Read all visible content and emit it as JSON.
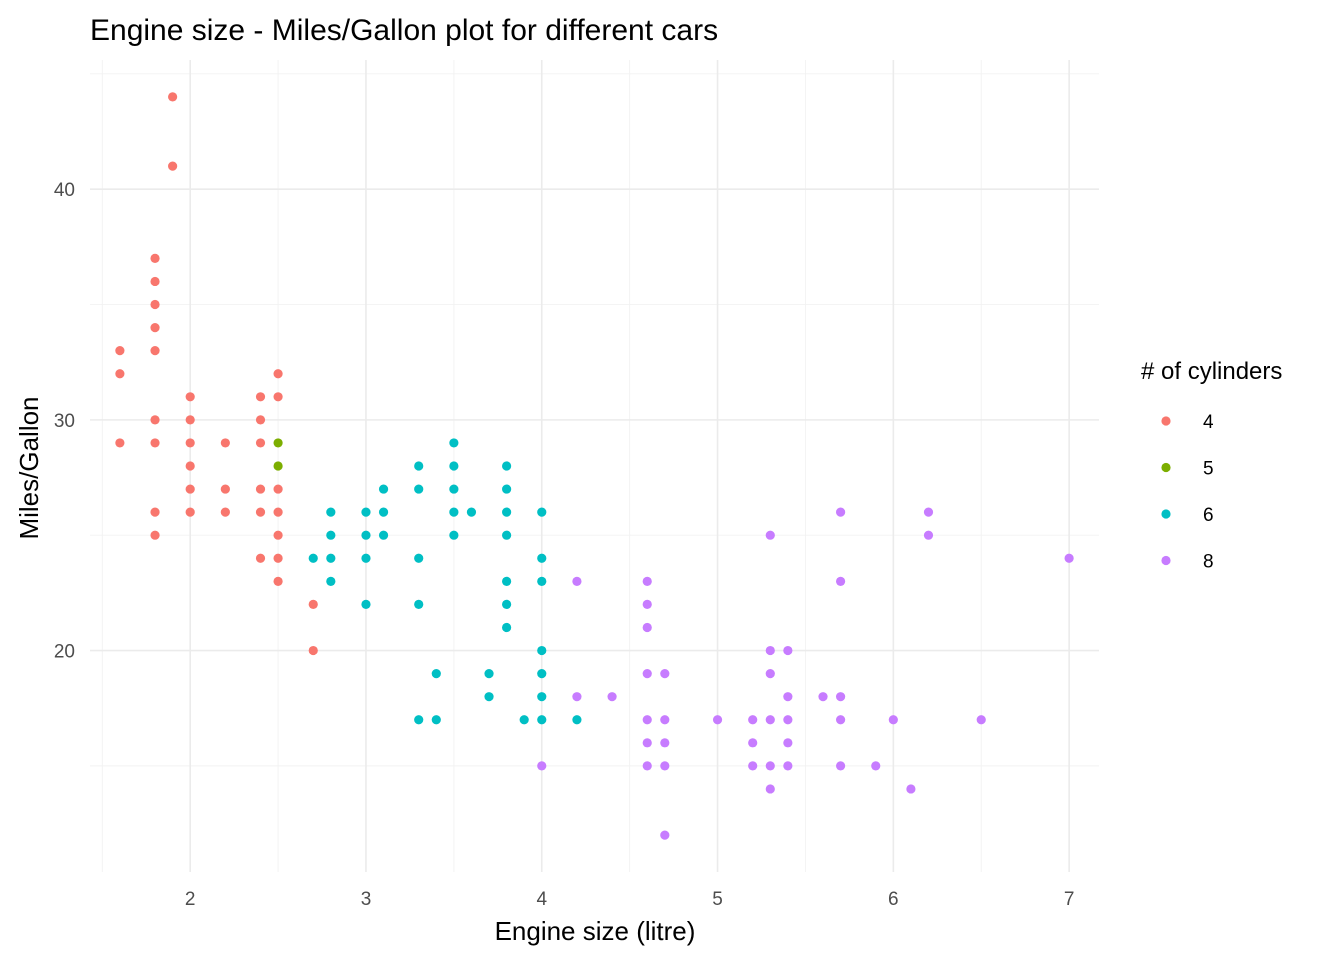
{
  "chart_data": {
    "type": "scatter",
    "title": "Engine size - Miles/Gallon plot for different cars",
    "xlabel": "Engine size (litre)",
    "ylabel": "Miles/Gallon",
    "xlim": [
      1.43,
      7.17
    ],
    "ylim": [
      10.4,
      45.6
    ],
    "x_ticks": [
      2,
      3,
      4,
      5,
      6,
      7
    ],
    "y_ticks": [
      20,
      30,
      40
    ],
    "grid": true,
    "legend": {
      "title": "# of cylinders",
      "position": "right"
    },
    "series": [
      {
        "name": "4",
        "color": "#F8766D",
        "points": [
          [
            1.6,
            33
          ],
          [
            1.6,
            32
          ],
          [
            1.6,
            29
          ],
          [
            1.8,
            37
          ],
          [
            1.8,
            36
          ],
          [
            1.8,
            35
          ],
          [
            1.8,
            34
          ],
          [
            1.8,
            33
          ],
          [
            1.8,
            30
          ],
          [
            1.8,
            29
          ],
          [
            1.8,
            26
          ],
          [
            1.8,
            25
          ],
          [
            1.9,
            44
          ],
          [
            1.9,
            41
          ],
          [
            2.0,
            31
          ],
          [
            2.0,
            30
          ],
          [
            2.0,
            29
          ],
          [
            2.0,
            28
          ],
          [
            2.0,
            27
          ],
          [
            2.0,
            26
          ],
          [
            2.2,
            29
          ],
          [
            2.2,
            27
          ],
          [
            2.2,
            26
          ],
          [
            2.4,
            31
          ],
          [
            2.4,
            30
          ],
          [
            2.4,
            29
          ],
          [
            2.4,
            27
          ],
          [
            2.4,
            26
          ],
          [
            2.4,
            24
          ],
          [
            2.5,
            32
          ],
          [
            2.5,
            31
          ],
          [
            2.5,
            27
          ],
          [
            2.5,
            26
          ],
          [
            2.5,
            25
          ],
          [
            2.5,
            24
          ],
          [
            2.5,
            23
          ],
          [
            2.7,
            22
          ],
          [
            2.7,
            20
          ]
        ]
      },
      {
        "name": "5",
        "color": "#7CAE00",
        "points": [
          [
            2.5,
            29
          ],
          [
            2.5,
            28
          ]
        ]
      },
      {
        "name": "6",
        "color": "#00BFC4",
        "points": [
          [
            2.7,
            24
          ],
          [
            2.8,
            26
          ],
          [
            2.8,
            25
          ],
          [
            2.8,
            24
          ],
          [
            2.8,
            23
          ],
          [
            3.0,
            26
          ],
          [
            3.0,
            25
          ],
          [
            3.0,
            24
          ],
          [
            3.0,
            22
          ],
          [
            3.1,
            27
          ],
          [
            3.1,
            26
          ],
          [
            3.1,
            25
          ],
          [
            3.3,
            28
          ],
          [
            3.3,
            27
          ],
          [
            3.3,
            24
          ],
          [
            3.3,
            22
          ],
          [
            3.3,
            17
          ],
          [
            3.4,
            19
          ],
          [
            3.4,
            17
          ],
          [
            3.5,
            29
          ],
          [
            3.5,
            28
          ],
          [
            3.5,
            27
          ],
          [
            3.5,
            26
          ],
          [
            3.5,
            25
          ],
          [
            3.6,
            26
          ],
          [
            3.7,
            19
          ],
          [
            3.7,
            18
          ],
          [
            3.8,
            28
          ],
          [
            3.8,
            27
          ],
          [
            3.8,
            26
          ],
          [
            3.8,
            25
          ],
          [
            3.8,
            23
          ],
          [
            3.8,
            22
          ],
          [
            3.8,
            21
          ],
          [
            3.9,
            17
          ],
          [
            4.0,
            26
          ],
          [
            4.0,
            24
          ],
          [
            4.0,
            23
          ],
          [
            4.0,
            20
          ],
          [
            4.0,
            19
          ],
          [
            4.0,
            18
          ],
          [
            4.0,
            17
          ],
          [
            4.2,
            17
          ]
        ]
      },
      {
        "name": "8",
        "color": "#C77CFF",
        "points": [
          [
            4.0,
            15
          ],
          [
            4.2,
            23
          ],
          [
            4.2,
            18
          ],
          [
            4.4,
            18
          ],
          [
            4.6,
            23
          ],
          [
            4.6,
            22
          ],
          [
            4.6,
            21
          ],
          [
            4.6,
            19
          ],
          [
            4.6,
            17
          ],
          [
            4.6,
            16
          ],
          [
            4.6,
            15
          ],
          [
            4.7,
            19
          ],
          [
            4.7,
            17
          ],
          [
            4.7,
            16
          ],
          [
            4.7,
            15
          ],
          [
            4.7,
            12
          ],
          [
            5.0,
            17
          ],
          [
            5.2,
            17
          ],
          [
            5.2,
            16
          ],
          [
            5.2,
            15
          ],
          [
            5.3,
            25
          ],
          [
            5.3,
            20
          ],
          [
            5.3,
            19
          ],
          [
            5.3,
            17
          ],
          [
            5.3,
            15
          ],
          [
            5.3,
            14
          ],
          [
            5.4,
            20
          ],
          [
            5.4,
            18
          ],
          [
            5.4,
            17
          ],
          [
            5.4,
            16
          ],
          [
            5.4,
            15
          ],
          [
            5.6,
            18
          ],
          [
            5.7,
            26
          ],
          [
            5.7,
            23
          ],
          [
            5.7,
            18
          ],
          [
            5.7,
            17
          ],
          [
            5.7,
            15
          ],
          [
            5.9,
            15
          ],
          [
            6.0,
            17
          ],
          [
            6.1,
            14
          ],
          [
            6.2,
            26
          ],
          [
            6.2,
            25
          ],
          [
            6.5,
            17
          ],
          [
            7.0,
            24
          ]
        ]
      }
    ]
  }
}
